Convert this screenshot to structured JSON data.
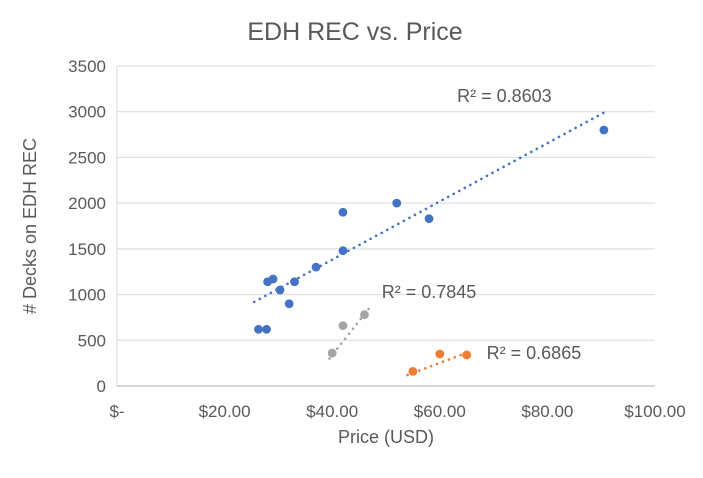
{
  "chart_data": {
    "type": "scatter",
    "title": "EDH REC vs. Price",
    "xlabel": "Price (USD)",
    "ylabel": "# Decks on EDH REC",
    "xlim": [
      0,
      100
    ],
    "ylim": [
      0,
      3500
    ],
    "x_ticks": [
      0,
      20,
      40,
      60,
      80,
      100
    ],
    "x_tick_labels": [
      "$-",
      "$20.00",
      "$40.00",
      "$60.00",
      "$80.00",
      "$100.00"
    ],
    "y_ticks": [
      0,
      500,
      1000,
      1500,
      2000,
      2500,
      3000,
      3500
    ],
    "y_tick_labels": [
      "0",
      "500",
      "1000",
      "1500",
      "2000",
      "2500",
      "3000",
      "3500"
    ],
    "grid": "horizontal-only",
    "legend": "none",
    "text_color": "#595959",
    "gridline_color": "#D9D9D9",
    "axis_line_color": "#BFBFBF",
    "series": [
      {
        "id": "blue",
        "color": "#4472C4",
        "points": [
          [
            26.3,
            620
          ],
          [
            27.8,
            620
          ],
          [
            28,
            1140
          ],
          [
            29,
            1170
          ],
          [
            30.3,
            1050
          ],
          [
            32,
            900
          ],
          [
            33,
            1140
          ],
          [
            37,
            1300
          ],
          [
            42,
            1480
          ],
          [
            42,
            1900
          ],
          [
            52,
            2000
          ],
          [
            58,
            1830
          ],
          [
            90.5,
            2800
          ]
        ],
        "trendline": {
          "style": "dotted",
          "x1": 25.5,
          "y1": 920,
          "x2": 90.5,
          "y2": 2990
        },
        "r2": {
          "text": "R² = 0.8603",
          "value": 0.8603,
          "at": [
            72,
            3170
          ]
        }
      },
      {
        "id": "gray",
        "color": "#A5A5A5",
        "points": [
          [
            40,
            360
          ],
          [
            42,
            660
          ],
          [
            46,
            780
          ]
        ],
        "trendline": {
          "style": "dotted",
          "x1": 39.5,
          "y1": 300,
          "x2": 47,
          "y2": 860
        },
        "r2": {
          "text": "R² = 0.7845",
          "value": 0.7845,
          "at": [
            58,
            1030
          ]
        }
      },
      {
        "id": "orange",
        "color": "#ED7D31",
        "points": [
          [
            55,
            160
          ],
          [
            60,
            350
          ],
          [
            65,
            340
          ]
        ],
        "trendline": {
          "style": "dotted",
          "x1": 54,
          "y1": 120,
          "x2": 65.8,
          "y2": 380
        },
        "r2": {
          "text": "R² = 0.6865",
          "value": 0.6865,
          "at": [
            77.5,
            360
          ]
        }
      }
    ]
  }
}
